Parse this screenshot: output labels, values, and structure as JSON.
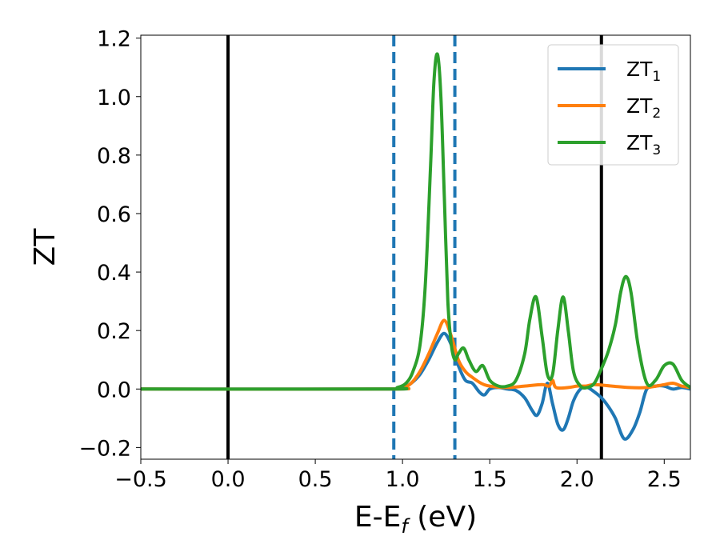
{
  "chart_data": {
    "type": "line",
    "title": "",
    "xlabel": "E-E",
    "xlabel_sub": "f",
    "xlabel_suffix": " (eV)",
    "ylabel": "ZT",
    "xlim": [
      -0.5,
      2.65
    ],
    "ylim": [
      -0.24,
      1.21
    ],
    "xticks": [
      -0.5,
      0.0,
      0.5,
      1.0,
      1.5,
      2.0,
      2.5
    ],
    "xtick_labels": [
      "−0.5",
      "0.0",
      "0.5",
      "1.0",
      "1.5",
      "2.0",
      "2.5"
    ],
    "yticks": [
      -0.2,
      0.0,
      0.2,
      0.4,
      0.6,
      0.8,
      1.0,
      1.2
    ],
    "ytick_labels": [
      "−0.2",
      "0.0",
      "0.2",
      "0.4",
      "0.6",
      "0.8",
      "1.0",
      "1.2"
    ],
    "grid": false,
    "legend_position": "top-right",
    "vertical_lines": [
      {
        "x": 0.0,
        "style": "solid",
        "color": "#000000"
      },
      {
        "x": 0.95,
        "style": "dashed",
        "color": "#1f77b4"
      },
      {
        "x": 1.3,
        "style": "dashed",
        "color": "#1f77b4"
      },
      {
        "x": 2.14,
        "style": "solid",
        "color": "#000000"
      }
    ],
    "series": [
      {
        "name": "ZT",
        "name_sub": "1",
        "color": "#1f77b4",
        "x": [
          -0.5,
          0.9,
          1.0,
          1.05,
          1.1,
          1.15,
          1.2,
          1.24,
          1.28,
          1.32,
          1.36,
          1.4,
          1.44,
          1.47,
          1.5,
          1.55,
          1.6,
          1.65,
          1.7,
          1.74,
          1.77,
          1.8,
          1.83,
          1.86,
          1.89,
          1.92,
          1.95,
          1.98,
          2.02,
          2.06,
          2.1,
          2.14,
          2.18,
          2.22,
          2.27,
          2.32,
          2.36,
          2.4,
          2.45,
          2.5,
          2.55,
          2.6,
          2.65
        ],
        "y": [
          0.0,
          0.0,
          0.005,
          0.02,
          0.05,
          0.1,
          0.16,
          0.19,
          0.15,
          0.08,
          0.03,
          0.02,
          -0.01,
          -0.02,
          0.0,
          0.005,
          0.0,
          -0.005,
          -0.03,
          -0.07,
          -0.09,
          -0.05,
          0.02,
          -0.05,
          -0.12,
          -0.14,
          -0.1,
          -0.04,
          0.0,
          0.005,
          -0.01,
          -0.03,
          -0.06,
          -0.1,
          -0.17,
          -0.14,
          -0.08,
          0.0,
          0.01,
          0.01,
          0.0,
          0.005,
          0.0
        ]
      },
      {
        "name": "ZT",
        "name_sub": "2",
        "color": "#ff7f0e",
        "x": [
          -0.5,
          0.9,
          1.0,
          1.05,
          1.1,
          1.15,
          1.2,
          1.24,
          1.28,
          1.32,
          1.36,
          1.4,
          1.45,
          1.5,
          1.6,
          1.7,
          1.8,
          1.84,
          1.86,
          1.88,
          1.95,
          2.0,
          2.05,
          2.1,
          2.2,
          2.3,
          2.4,
          2.5,
          2.55,
          2.6,
          2.65
        ],
        "y": [
          0.0,
          0.0,
          0.005,
          0.02,
          0.06,
          0.12,
          0.19,
          0.235,
          0.18,
          0.1,
          0.06,
          0.04,
          0.02,
          0.01,
          0.005,
          0.01,
          0.015,
          0.01,
          0.03,
          0.005,
          0.005,
          0.01,
          0.01,
          0.015,
          0.01,
          0.005,
          0.005,
          0.015,
          0.02,
          0.01,
          0.005
        ]
      },
      {
        "name": "ZT",
        "name_sub": "3",
        "color": "#2ca02c",
        "x": [
          -0.5,
          0.9,
          0.97,
          1.02,
          1.06,
          1.1,
          1.13,
          1.16,
          1.18,
          1.2,
          1.22,
          1.24,
          1.26,
          1.28,
          1.3,
          1.32,
          1.35,
          1.38,
          1.42,
          1.46,
          1.5,
          1.55,
          1.6,
          1.65,
          1.7,
          1.73,
          1.765,
          1.8,
          1.83,
          1.86,
          1.89,
          1.92,
          1.95,
          1.98,
          2.02,
          2.06,
          2.1,
          2.14,
          2.18,
          2.22,
          2.25,
          2.28,
          2.31,
          2.35,
          2.4,
          2.45,
          2.5,
          2.55,
          2.6,
          2.65
        ],
        "y": [
          0.0,
          0.0,
          0.005,
          0.02,
          0.06,
          0.15,
          0.35,
          0.75,
          1.05,
          1.145,
          1.0,
          0.65,
          0.3,
          0.15,
          0.1,
          0.12,
          0.14,
          0.1,
          0.06,
          0.08,
          0.03,
          0.01,
          0.01,
          0.03,
          0.12,
          0.24,
          0.315,
          0.18,
          0.05,
          0.05,
          0.2,
          0.315,
          0.2,
          0.06,
          0.01,
          0.005,
          0.02,
          0.07,
          0.13,
          0.22,
          0.33,
          0.385,
          0.33,
          0.15,
          0.02,
          0.03,
          0.08,
          0.085,
          0.03,
          0.005
        ]
      }
    ]
  }
}
